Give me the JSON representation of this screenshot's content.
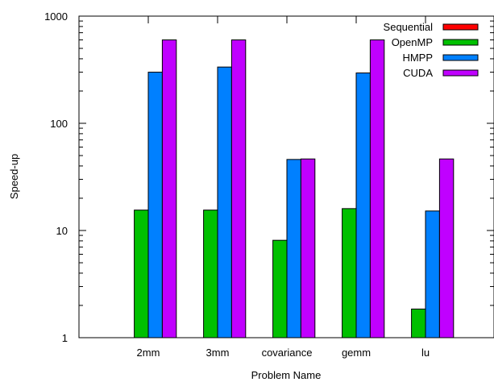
{
  "chart_data": {
    "type": "bar",
    "xlabel": "Problem Name",
    "ylabel": "Speed-up",
    "yscale": "log",
    "ylim": [
      1,
      1000
    ],
    "yticks": [
      {
        "value": 1,
        "label": "1"
      },
      {
        "value": 10,
        "label": "10"
      },
      {
        "value": 100,
        "label": "100"
      },
      {
        "value": 1000,
        "label": "1000"
      }
    ],
    "categories": [
      "2mm",
      "3mm",
      "covariance",
      "gemm",
      "lu"
    ],
    "series": [
      {
        "name": "Sequential",
        "color": "#ff0000",
        "values": [
          1,
          1,
          1,
          1,
          1
        ]
      },
      {
        "name": "OpenMP",
        "color": "#00c000",
        "values": [
          15.5,
          15.5,
          8.1,
          16,
          1.85
        ]
      },
      {
        "name": "HMPP",
        "color": "#0080ff",
        "values": [
          300,
          335,
          46,
          295,
          15.2
        ]
      },
      {
        "name": "CUDA",
        "color": "#c000ff",
        "values": [
          600,
          600,
          46.5,
          600,
          46.5
        ]
      }
    ],
    "legend_position": "top-right",
    "grid": false
  }
}
